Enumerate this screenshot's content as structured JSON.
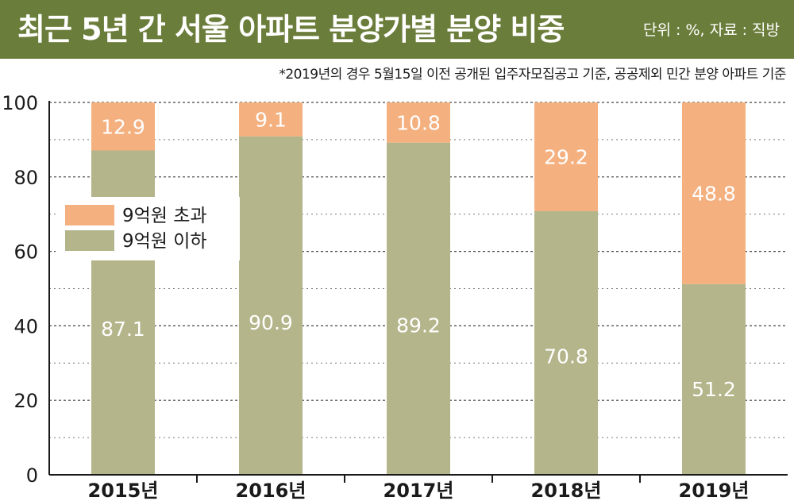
{
  "header": {
    "title": "최근 5년 간 서울 아파트 분양가별 분양 비중",
    "unit": "단위 : %, 자료 : 직방"
  },
  "footnote": "*2019년의 경우 5월15일 이전 공개된 입주자모집공고 기준, 공공제외 민간 분양 아파트 기준",
  "colors": {
    "header_bg": "#6b7d3a",
    "above_9": "#f4b07f",
    "below_9": "#b4b58a"
  },
  "chart_data": {
    "type": "bar",
    "stacked": true,
    "title": "최근 5년 간 서울 아파트 분양가별 분양 비중",
    "unit_label": "단위 : %, 자료 : 직방",
    "categories": [
      "2015년",
      "2016년",
      "2017년",
      "2018년",
      "2019년"
    ],
    "series": [
      {
        "name": "9억원 이하",
        "color": "#b4b58a",
        "values": [
          87.1,
          90.9,
          89.2,
          70.8,
          51.2
        ]
      },
      {
        "name": "9억원 초과",
        "color": "#f4b07f",
        "values": [
          12.9,
          9.1,
          10.8,
          29.2,
          48.8
        ]
      }
    ],
    "ylim": [
      0,
      100
    ],
    "yticks": [
      "0",
      "20",
      "40",
      "60",
      "80",
      "100"
    ],
    "grid": true,
    "legend_position": "left"
  }
}
